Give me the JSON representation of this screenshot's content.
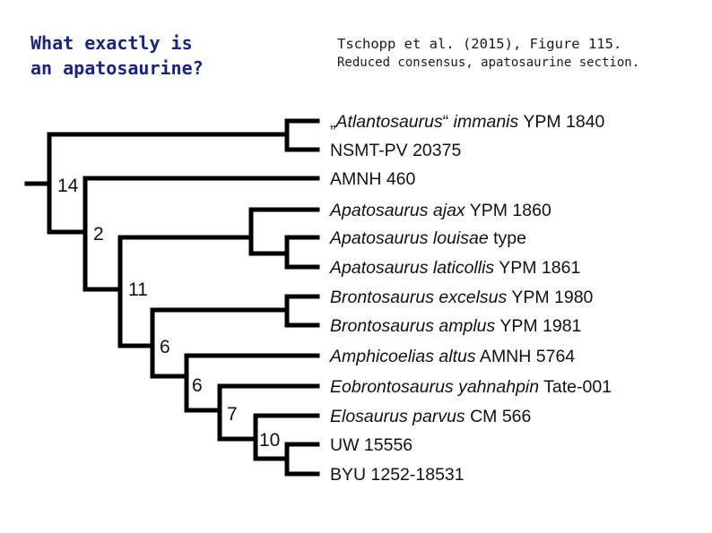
{
  "header": {
    "question_line1": "What exactly is",
    "question_line2": "an apatosaurine?",
    "citation": "Tschopp et al. (2015), Figure 115.",
    "description": "Reduced consensus, apatosaurine section."
  },
  "tree": {
    "colors": {
      "branch": "#000000",
      "text": "#111111",
      "background": "#ffffff"
    },
    "taxa": [
      {
        "pre": "„",
        "italic": "Atlantosaurus",
        "mid": "“ ",
        "italic2": "immanis",
        "post": " YPM 1840"
      },
      {
        "pre": "",
        "italic": "",
        "mid": "",
        "italic2": "",
        "post": "NSMT-PV 20375"
      },
      {
        "pre": "",
        "italic": "",
        "mid": "",
        "italic2": "",
        "post": "AMNH 460"
      },
      {
        "pre": "",
        "italic": "Apatosaurus ajax",
        "mid": "",
        "italic2": "",
        "post": " YPM 1860"
      },
      {
        "pre": "",
        "italic": "Apatosaurus louisae",
        "mid": "",
        "italic2": "",
        "post": " type"
      },
      {
        "pre": "",
        "italic": "Apatosaurus laticollis",
        "mid": "",
        "italic2": "",
        "post": " YPM 1861"
      },
      {
        "pre": "",
        "italic": "Brontosaurus excelsus",
        "mid": "",
        "italic2": "",
        "post": " YPM 1980"
      },
      {
        "pre": "",
        "italic": "Brontosaurus amplus",
        "mid": "",
        "italic2": "",
        "post": " YPM 1981"
      },
      {
        "pre": "",
        "italic": "Amphicoelias altus",
        "mid": "",
        "italic2": "",
        "post": " AMNH 5764"
      },
      {
        "pre": "",
        "italic": "Eobrontosaurus yahnahpin",
        "mid": "",
        "italic2": "",
        "post": " Tate-001"
      },
      {
        "pre": "",
        "italic": "Elosaurus parvus",
        "mid": "",
        "italic2": "",
        "post": " CM 566"
      },
      {
        "pre": "",
        "italic": "",
        "mid": "",
        "italic2": "",
        "post": "UW 15556"
      },
      {
        "pre": "",
        "italic": "",
        "mid": "",
        "italic2": "",
        "post": "BYU 1252-18531"
      }
    ],
    "node_labels": [
      "14",
      "2",
      "11",
      "6",
      "6",
      "7",
      "10"
    ]
  }
}
